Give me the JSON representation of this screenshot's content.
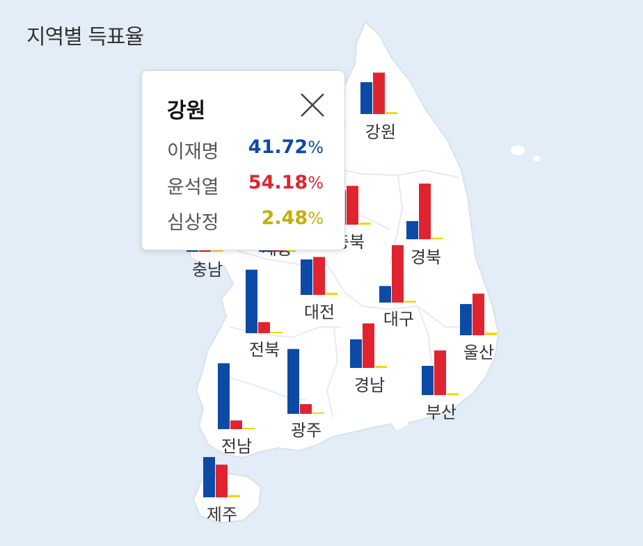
{
  "page": {
    "title": "지역별 득표율"
  },
  "colors": {
    "lee": "#0d4aa6",
    "yoon": "#e0242f",
    "sim": "#f2d600",
    "map_fill": "#ffffff",
    "bg": "#e3edf7"
  },
  "candidates": [
    "이재명",
    "윤석열",
    "심상정"
  ],
  "chart_data": {
    "type": "bar",
    "categories": [
      "강원",
      "충남",
      "세종",
      "충북",
      "경북",
      "대전",
      "대구",
      "전북",
      "울산",
      "경남",
      "부산",
      "전남",
      "광주",
      "제주"
    ],
    "series": [
      {
        "name": "이재명",
        "values": [
          41.7,
          45.1,
          51.9,
          45.1,
          23.8,
          46.4,
          21.6,
          83.0,
          40.8,
          37.4,
          38.2,
          86.1,
          84.8,
          52.6
        ]
      },
      {
        "name": "윤석열",
        "values": [
          54.2,
          51.1,
          44.1,
          50.7,
          72.8,
          49.6,
          75.1,
          14.4,
          54.4,
          58.2,
          58.3,
          11.4,
          12.7,
          42.7
        ]
      },
      {
        "name": "심상정",
        "values": [
          2.5,
          2.5,
          3.1,
          2.7,
          2.1,
          2.8,
          2.3,
          1.6,
          3.4,
          2.7,
          2.4,
          1.7,
          1.8,
          3.0
        ]
      }
    ],
    "ylim": [
      0,
      100
    ]
  },
  "tooltip": {
    "region": "강원",
    "rows": [
      {
        "name": "이재명",
        "value": "41.72",
        "unit": "%"
      },
      {
        "name": "윤석열",
        "value": "54.18",
        "unit": "%"
      },
      {
        "name": "심상정",
        "value": "2.48",
        "unit": "%"
      }
    ]
  }
}
